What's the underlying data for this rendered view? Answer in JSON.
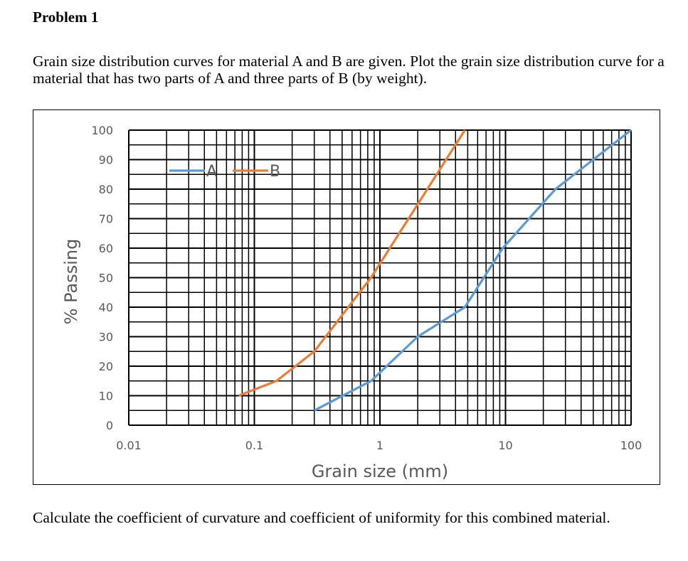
{
  "document": {
    "title": "Problem 1",
    "intro": "Grain size distribution curves for material A and B are given. Plot the grain size distribution curve for a material that has two parts of A and three parts of B (by weight).",
    "question": "Calculate the coefficient of curvature and coefficient of uniformity for this combined material."
  },
  "colors": {
    "series_A": "#5B9BD5",
    "series_B": "#ED7D31",
    "grid": "#000000",
    "tick_text": "#595959"
  },
  "chart_data": {
    "type": "line",
    "title": "",
    "xlabel": "Grain size (mm)",
    "ylabel": "% Passing",
    "xscale": "log",
    "xlim": [
      0.01,
      100
    ],
    "ylim": [
      0,
      100
    ],
    "x_ticks": [
      "0.01",
      "0.1",
      "1",
      "10",
      "100"
    ],
    "y_ticks": [
      "0",
      "10",
      "20",
      "30",
      "40",
      "50",
      "60",
      "70",
      "80",
      "90",
      "100"
    ],
    "grid": true,
    "legend_position": "top-left-inside",
    "series": [
      {
        "name": "A",
        "color": "#5B9BD5",
        "x": [
          0.3,
          0.85,
          2,
          4.75,
          9.5,
          25,
          100
        ],
        "values": [
          5,
          15,
          30,
          40,
          60,
          80,
          100
        ]
      },
      {
        "name": "B",
        "color": "#ED7D31",
        "x": [
          0.075,
          0.15,
          0.3,
          0.85,
          4.75
        ],
        "values": [
          10,
          15,
          25,
          50,
          100
        ]
      }
    ]
  }
}
